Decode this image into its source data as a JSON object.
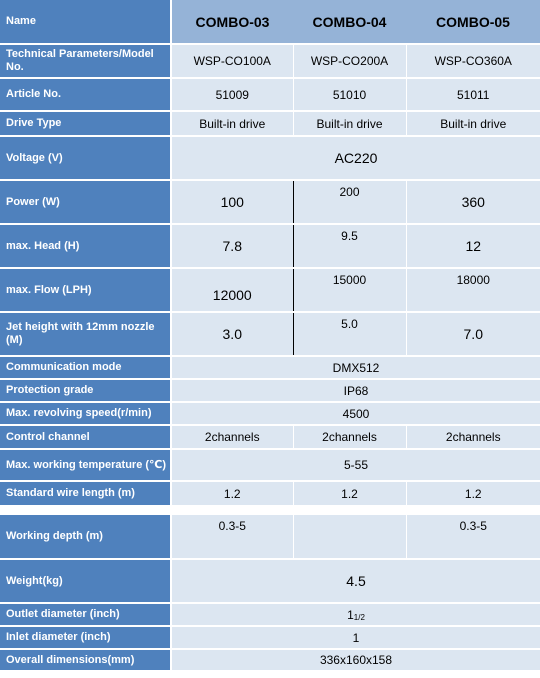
{
  "header": {
    "name_label": "Name",
    "models": [
      "COMBO-03",
      "COMBO-04",
      "COMBO-05"
    ]
  },
  "rows": {
    "tech_params": {
      "label": "Technical Parameters/Model No.",
      "values": [
        "WSP-CO100A",
        "WSP-CO200A",
        "WSP-CO360A"
      ]
    },
    "article_no": {
      "label": "Article No.",
      "values": [
        "51009",
        "51010",
        "51011"
      ]
    },
    "drive_type": {
      "label": "Drive Type",
      "values": [
        "Built-in drive",
        "Built-in drive",
        "Built-in drive"
      ]
    },
    "voltage": {
      "label": "Voltage (V)",
      "value": "AC220"
    },
    "power": {
      "label": "Power (W)",
      "values": [
        "100",
        "200",
        "360"
      ]
    },
    "max_head": {
      "label": "max. Head (H)",
      "values": [
        "7.8",
        "9.5",
        "12"
      ]
    },
    "max_flow": {
      "label": "max. Flow (LPH)",
      "values": [
        "12000",
        "15000",
        "18000"
      ]
    },
    "jet_height": {
      "label": "Jet height with 12mm nozzle (M)",
      "values": [
        "3.0",
        "5.0",
        "7.0"
      ]
    },
    "communication": {
      "label": "Communication mode",
      "value": "DMX512"
    },
    "protection": {
      "label": "Protection grade",
      "value": "IP68"
    },
    "revolving_speed": {
      "label": "Max. revolving speed(r/min)",
      "value": "4500"
    },
    "control_channel": {
      "label": "Control channel",
      "values": [
        "2channels",
        "2channels",
        "2channels"
      ]
    },
    "working_temp": {
      "label": "Max. working temperature (℃)",
      "value": "5-55"
    },
    "wire_length": {
      "label": "Standard wire length (m)",
      "values": [
        "1.2",
        "1.2",
        "1.2"
      ]
    },
    "working_depth": {
      "label": "Working depth (m)",
      "values": [
        "0.3-5",
        "",
        "0.3-5"
      ]
    },
    "weight": {
      "label": "Weight(kg)",
      "value": "4.5"
    },
    "outlet": {
      "label": "Outlet diameter (inch)",
      "value_main": "1",
      "value_sub": "1/2"
    },
    "inlet": {
      "label": "Inlet diameter (inch)",
      "value": "1"
    },
    "dimensions": {
      "label": "Overall dimensions(mm)",
      "value": "336x160x158"
    }
  }
}
